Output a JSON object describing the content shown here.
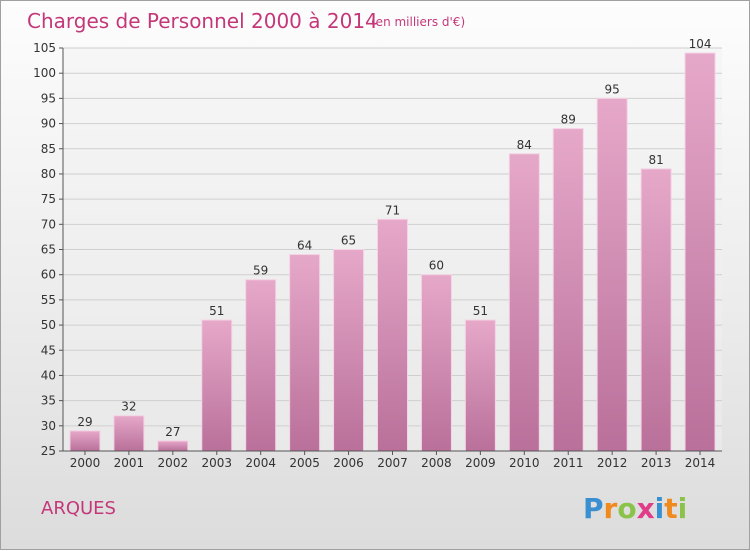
{
  "chart_data": {
    "type": "bar",
    "title": "Charges de Personnel 2000 à 2014",
    "subtitle": "(en milliers d'€)",
    "categories": [
      "2000",
      "2001",
      "2002",
      "2003",
      "2004",
      "2005",
      "2006",
      "2007",
      "2008",
      "2009",
      "2010",
      "2011",
      "2012",
      "2013",
      "2014"
    ],
    "values": [
      29,
      32,
      27,
      51,
      59,
      64,
      65,
      71,
      60,
      51,
      84,
      89,
      95,
      81,
      104
    ],
    "ylim": [
      25,
      105
    ],
    "yticks": [
      25,
      30,
      35,
      40,
      45,
      50,
      55,
      60,
      65,
      70,
      75,
      80,
      85,
      90,
      95,
      100,
      105
    ],
    "grid": true,
    "bar_color": "#d98ab4"
  },
  "place_name": "ARQUES",
  "brand": {
    "letters": [
      "P",
      "r",
      "o",
      "x",
      "i",
      "t",
      "i"
    ],
    "colors": [
      "#3a8fd1",
      "#f08a1e",
      "#8bc34a",
      "#e03c8a",
      "#3a8fd1",
      "#f08a1e",
      "#8bc34a"
    ]
  }
}
